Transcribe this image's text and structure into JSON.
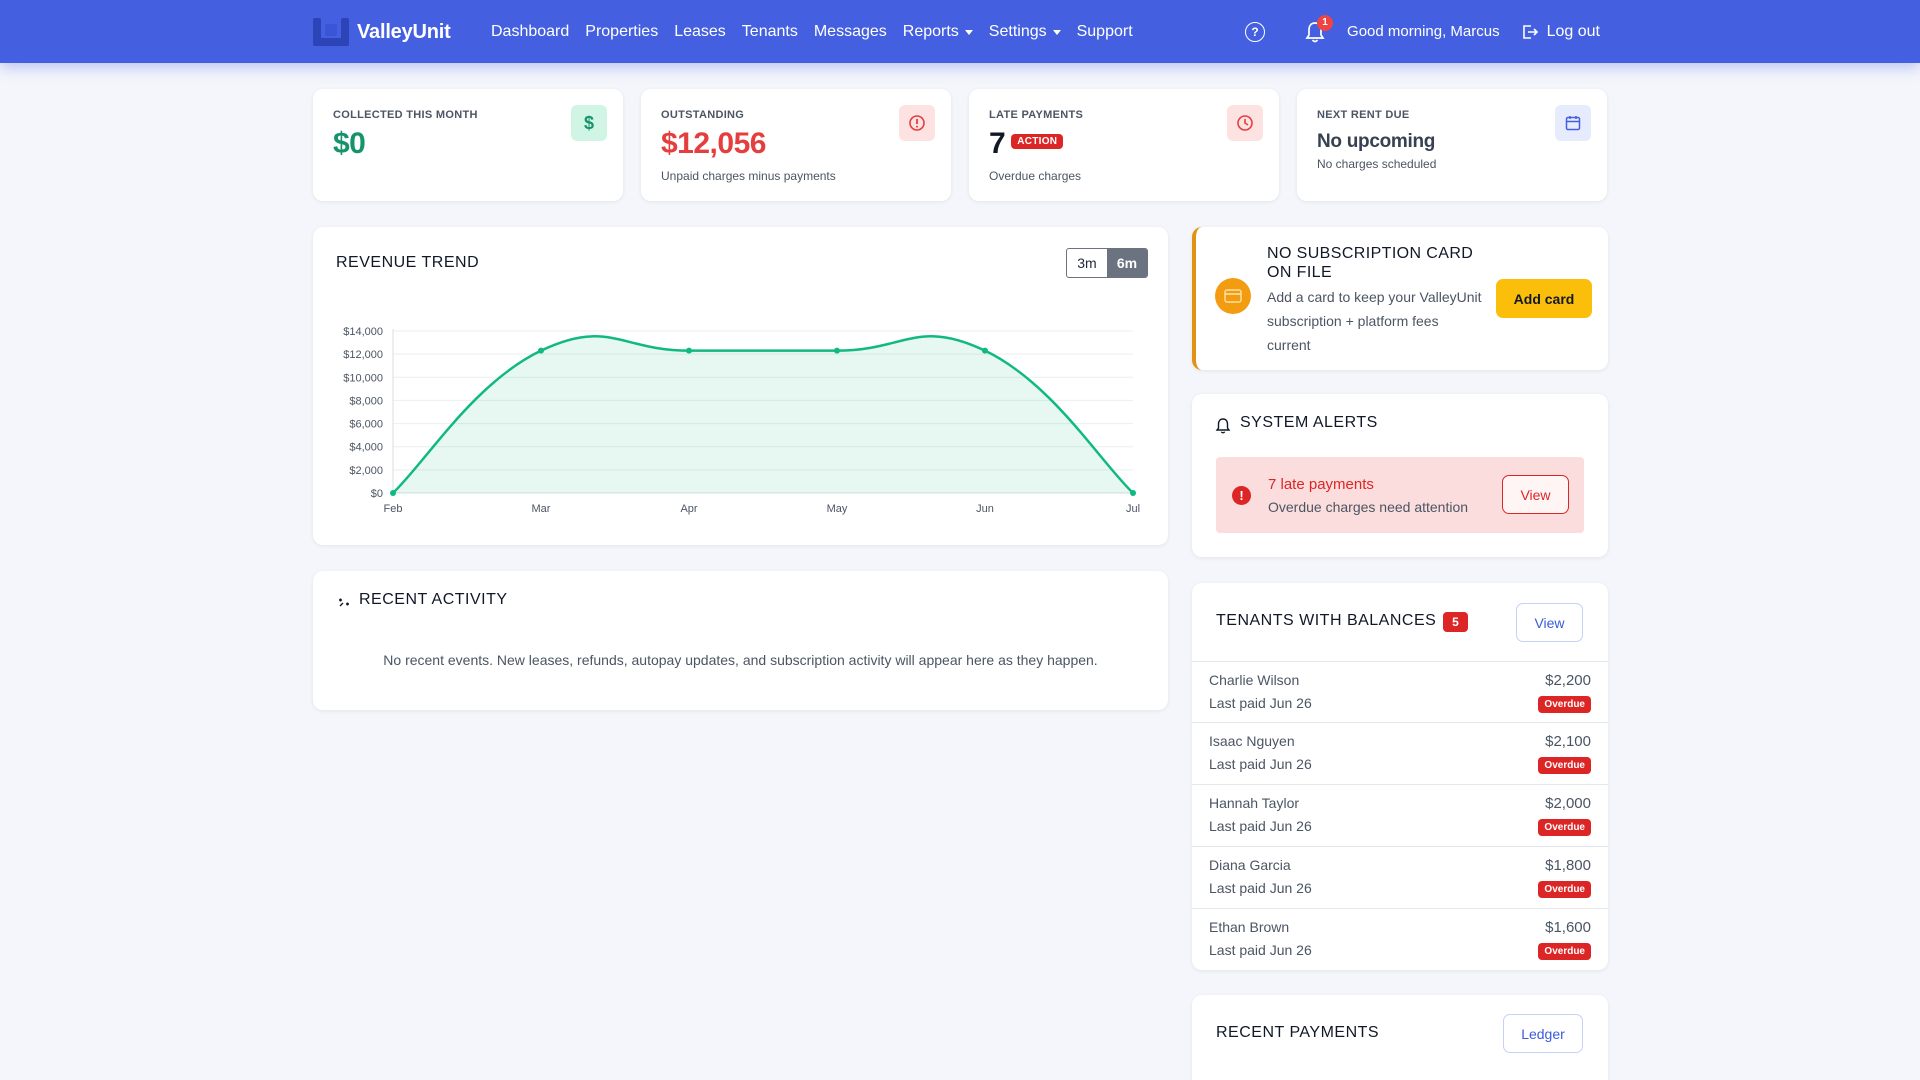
{
  "nav": {
    "brand": "ValleyUnit",
    "links": [
      "Dashboard",
      "Properties",
      "Leases",
      "Tenants",
      "Messages"
    ],
    "reports": "Reports",
    "settings": "Settings",
    "support": "Support",
    "notification_count": "1",
    "greeting": "Good morning, Marcus",
    "logout": "Log out"
  },
  "stats": {
    "collected": {
      "label": "COLLECTED THIS MONTH",
      "value": "$0"
    },
    "outstanding": {
      "label": "OUTSTANDING",
      "value": "$12,056",
      "sub": "Unpaid charges minus payments"
    },
    "late": {
      "label": "LATE PAYMENTS",
      "value": "7",
      "badge": "ACTION",
      "sub": "Overdue charges"
    },
    "next": {
      "label": "NEXT RENT DUE",
      "value": "No upcoming",
      "sub": "No charges scheduled"
    }
  },
  "revenue": {
    "title": "REVENUE TREND",
    "range_options": [
      "3m",
      "6m"
    ],
    "selected_range": "6m"
  },
  "chart_data": {
    "type": "area",
    "title": "",
    "categories": [
      "Feb",
      "Mar",
      "Apr",
      "May",
      "Jun",
      "Jul"
    ],
    "values": [
      0,
      12300,
      12300,
      12300,
      12300,
      0
    ],
    "ylim": [
      0,
      14000
    ],
    "yticks": [
      "$0",
      "$2,000",
      "$4,000",
      "$6,000",
      "$8,000",
      "$10,000",
      "$12,000",
      "$14,000"
    ],
    "grid": true,
    "color": "#10b981"
  },
  "activity": {
    "title": "RECENT ACTIVITY",
    "empty": "No recent events. New leases, refunds, autopay updates, and subscription activity will appear here as they happen."
  },
  "subscription": {
    "title": "NO SUBSCRIPTION CARD ON FILE",
    "line1": "Add a card to keep your ValleyUnit",
    "line2": "subscription + platform fees",
    "line3": "current",
    "button": "Add card"
  },
  "alerts": {
    "title": "SYSTEM ALERTS",
    "item_title": "7 late payments",
    "item_sub": "Overdue charges need attention",
    "button": "View"
  },
  "balances": {
    "title": "TENANTS WITH BALANCES",
    "count": "5",
    "button": "View",
    "rows": [
      {
        "name": "Charlie Wilson",
        "sub": "Last paid Jun 26",
        "amount": "$2,200",
        "status": "Overdue"
      },
      {
        "name": "Isaac Nguyen",
        "sub": "Last paid Jun 26",
        "amount": "$2,100",
        "status": "Overdue"
      },
      {
        "name": "Hannah Taylor",
        "sub": "Last paid Jun 26",
        "amount": "$2,000",
        "status": "Overdue"
      },
      {
        "name": "Diana Garcia",
        "sub": "Last paid Jun 26",
        "amount": "$1,800",
        "status": "Overdue"
      },
      {
        "name": "Ethan Brown",
        "sub": "Last paid Jun 26",
        "amount": "$1,600",
        "status": "Overdue"
      }
    ]
  },
  "payments": {
    "title": "RECENT PAYMENTS",
    "button": "Ledger"
  }
}
